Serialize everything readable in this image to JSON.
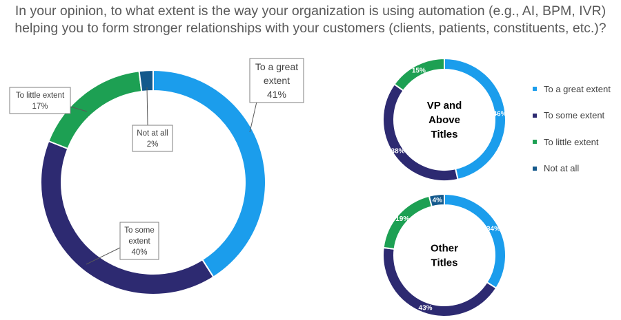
{
  "title_lines": [
    "In your opinion, to what extent is the way your organization is using automation (e.g., AI, BPM, IVR)",
    "helping you to form stronger relationships with your customers (clients, patients, constituents, etc.)?"
  ],
  "colors": {
    "To a great extent": "#1B9DEC",
    "To some extent": "#2D2A71",
    "To little extent": "#1DA053",
    "Not at all": "#14598C"
  },
  "chart_data": [
    {
      "type": "pie",
      "donut": true,
      "center_label": "",
      "categories": [
        "To a great extent",
        "To some extent",
        "To little extent",
        "Not at all"
      ],
      "values": [
        41,
        40,
        17,
        2
      ],
      "labels": [
        {
          "lines": [
            "To a great",
            "extent",
            "41%"
          ]
        },
        {
          "lines": [
            "To some",
            "extent",
            "40%"
          ]
        },
        {
          "lines": [
            "To little extent",
            "17%"
          ]
        },
        {
          "lines": [
            "Not at all",
            "2%"
          ]
        }
      ]
    },
    {
      "type": "pie",
      "donut": true,
      "center_label": "VP and Above Titles",
      "center_lines": [
        "VP and",
        "Above",
        "Titles"
      ],
      "categories": [
        "To a great extent",
        "To some extent",
        "To little extent"
      ],
      "values": [
        46,
        38,
        15
      ],
      "value_labels": [
        "46%",
        "38%",
        "15%"
      ]
    },
    {
      "type": "pie",
      "donut": true,
      "center_label": "Other Titles",
      "center_lines": [
        "Other",
        "Titles"
      ],
      "categories": [
        "To a great extent",
        "To some extent",
        "To little extent",
        "Not at all"
      ],
      "values": [
        34,
        43,
        19,
        4
      ],
      "value_labels": [
        "34%",
        "43%",
        "19%",
        "4%"
      ]
    }
  ],
  "legend": [
    "To a great extent",
    "To some extent",
    "To little extent",
    "Not at all"
  ]
}
